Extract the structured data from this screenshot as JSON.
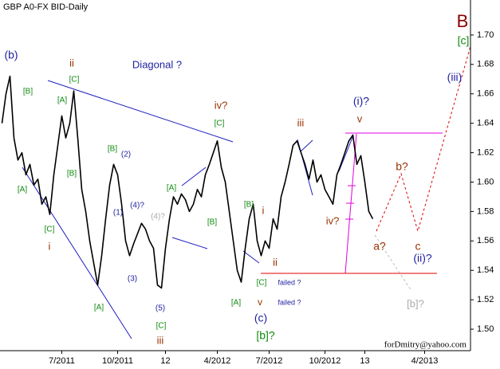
{
  "chart_data": {
    "type": "line",
    "title": "GBP A0-FX BID-Daily",
    "watermark": "forDmitry@yahoo.com",
    "categories": [
      null,
      null,
      null,
      null,
      null,
      null,
      null,
      null,
      null,
      null,
      null,
      null,
      null,
      null,
      null,
      "7/2011",
      null,
      null,
      null,
      null,
      null,
      null,
      null,
      null,
      null,
      null,
      null,
      null,
      null,
      "10/2011",
      null,
      null,
      null,
      null,
      null,
      null,
      null,
      null,
      null,
      null,
      null,
      "12",
      null,
      null,
      null,
      null,
      null,
      null,
      null,
      null,
      null,
      null,
      null,
      null,
      "4/2012",
      null,
      null,
      null,
      null,
      null,
      null,
      null,
      null,
      null,
      null,
      null,
      null,
      "7/2012",
      null,
      null,
      null,
      null,
      null,
      null,
      null,
      null,
      null,
      null,
      null,
      null,
      null,
      "10/2012",
      null,
      null,
      null,
      null,
      null,
      null,
      null,
      null,
      null,
      "13",
      null,
      null,
      null,
      null,
      null,
      null,
      null,
      null,
      null,
      null,
      null,
      null,
      null,
      null,
      "4/2013",
      null,
      null,
      null,
      null,
      null,
      null,
      null,
      null,
      null,
      null,
      null
    ],
    "series": [
      {
        "name": "GBP",
        "color": "#000000",
        "values": [
          1.64,
          1.66,
          1.672,
          1.63,
          1.615,
          1.62,
          1.605,
          1.612,
          1.598,
          1.602,
          1.585,
          1.59,
          1.578,
          1.605,
          1.625,
          1.645,
          1.63,
          1.64,
          1.662,
          1.63,
          1.595,
          1.58,
          1.56,
          1.545,
          1.53,
          1.55,
          1.575,
          1.598,
          1.612,
          1.605,
          1.585,
          1.56,
          1.55,
          1.558,
          1.565,
          1.572,
          1.568,
          1.56,
          1.555,
          1.53,
          1.528,
          1.555,
          1.575,
          1.59,
          1.585,
          1.592,
          1.588,
          1.58,
          1.585,
          1.595,
          1.59,
          1.605,
          1.612,
          1.62,
          1.628,
          1.61,
          1.6,
          1.58,
          1.56,
          1.54,
          1.532,
          1.555,
          1.575,
          1.585,
          1.56,
          1.55,
          1.56,
          1.555,
          1.575,
          1.568,
          1.59,
          1.6,
          1.612,
          1.625,
          1.628,
          1.62,
          1.612,
          1.602,
          1.615,
          1.6,
          1.605,
          1.595,
          1.59,
          1.585,
          1.605,
          1.612,
          1.62,
          1.628,
          1.632,
          1.612,
          1.618,
          1.6,
          1.58,
          1.575,
          null,
          null,
          null,
          null,
          null,
          null,
          null,
          null,
          null,
          null,
          null,
          null,
          null,
          null,
          null,
          null,
          null,
          null,
          null,
          null,
          null,
          null,
          null,
          null
        ]
      }
    ],
    "ylim": [
      1.4854,
      1.7238
    ],
    "yticks": [
      {
        "value": 1.5,
        "label": "1.50"
      },
      1.52,
      1.54,
      1.56,
      1.58,
      {
        "value": 1.6,
        "label": "1.60"
      },
      1.62,
      1.64,
      1.66,
      1.68,
      {
        "value": 1.7,
        "label": "1.70"
      }
    ],
    "annotations": [
      "(b)",
      "ii",
      "Diagonal ?",
      "[C]",
      "[B]",
      "[A]",
      "iv?",
      "[C]",
      "(i)?",
      "v",
      "iii",
      "[B]",
      "(2)",
      "[B]",
      "[A]",
      "[A]",
      "b?",
      "(4)?",
      "(4)?",
      "(1)",
      "[B]",
      "i",
      "[B]",
      "iv?",
      "[C]",
      "i",
      "a?",
      "c",
      "(ii)?",
      "(iii)",
      "[c]",
      "B",
      "ii",
      "(3)",
      "[C]",
      "failed ?",
      "(5)",
      "[A]",
      "[A]",
      "v",
      "failed ?",
      "(c)",
      "[b]?",
      "[C]",
      "[b]?",
      "iii"
    ]
  }
}
